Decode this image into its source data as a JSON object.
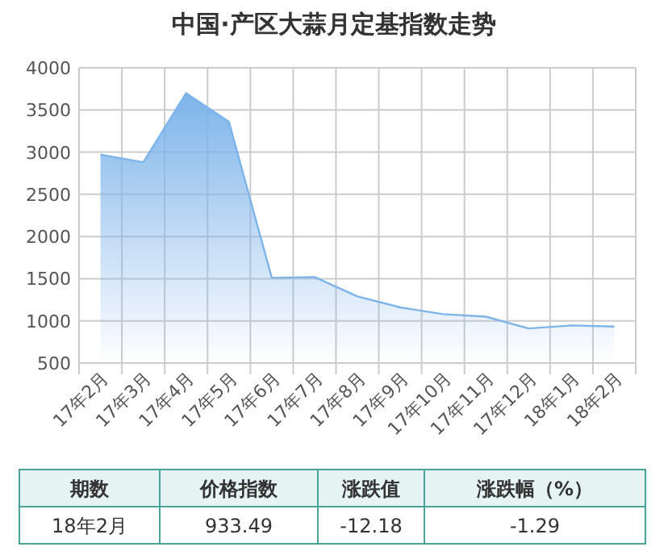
{
  "chart_data": [
    {
      "type": "area",
      "title": "中国·产区大蒜月定基指数走势",
      "categories": [
        "17年2月",
        "17年3月",
        "17年4月",
        "17年5月",
        "17年6月",
        "17年7月",
        "17年8月",
        "17年9月",
        "17年10月",
        "17年11月",
        "17年12月",
        "18年1月",
        "18年2月"
      ],
      "values": [
        2970,
        2880,
        3700,
        3360,
        1510,
        1520,
        1290,
        1160,
        1080,
        1050,
        910,
        946,
        933
      ],
      "color": "#7db4ea",
      "ylim": [
        500,
        4000
      ],
      "yticks": [
        500,
        1000,
        1500,
        2000,
        2500,
        3000,
        3500,
        4000
      ],
      "grid": true
    },
    {
      "type": "other",
      "annotations": [
        "期数",
        "价格指数",
        "涨跌值",
        "涨跌幅（%）",
        "18年2月",
        "933.49",
        "-12.18",
        "-1.29"
      ]
    }
  ]
}
